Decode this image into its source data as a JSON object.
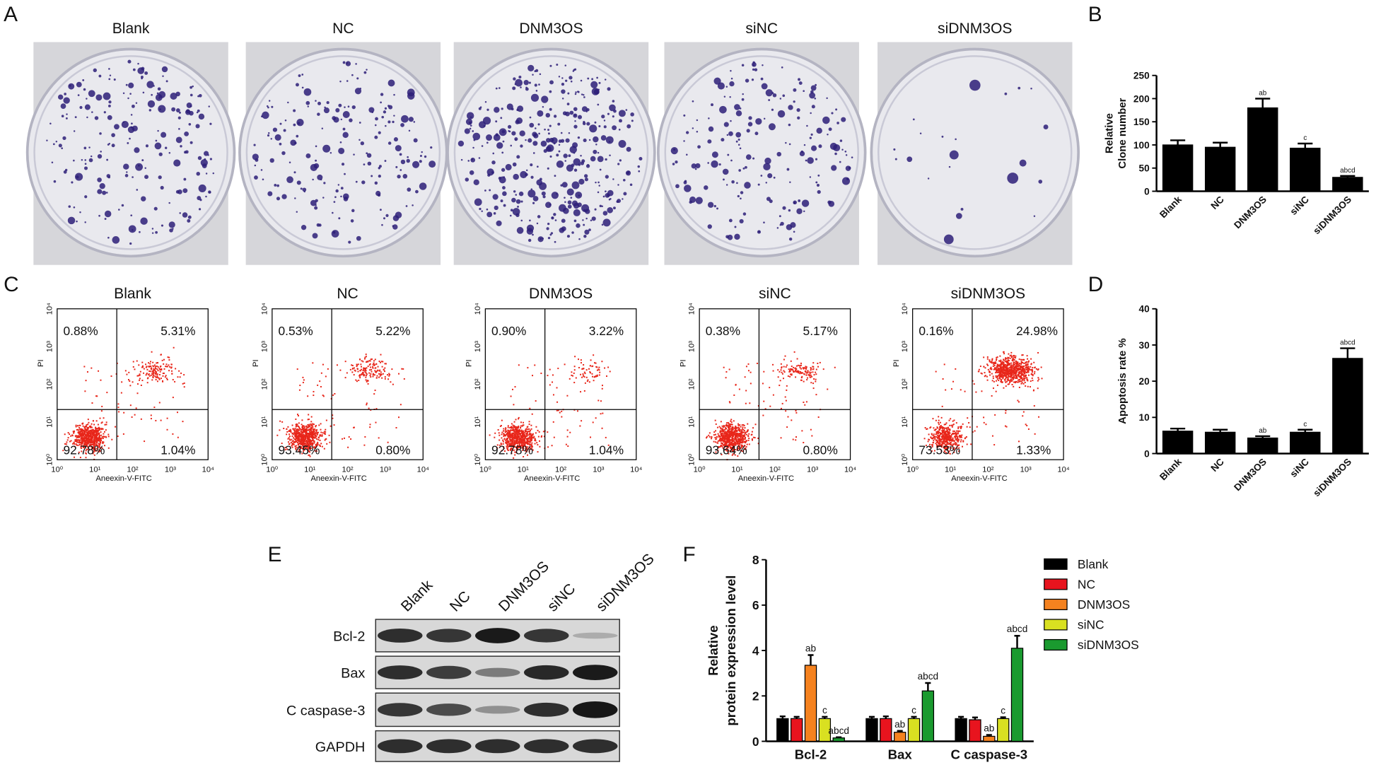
{
  "panel_labels": [
    "A",
    "B",
    "C",
    "D",
    "E",
    "F"
  ],
  "colony_assay": {
    "groups": [
      "Blank",
      "NC",
      "DNM3OS",
      "siNC",
      "siDNM3OS"
    ]
  },
  "flow_cytometry": {
    "x_label": "Aneexin-V-FITC",
    "y_label": "PI",
    "ticks": [
      "10⁰",
      "10¹",
      "10²",
      "10³",
      "10⁴"
    ],
    "plots": [
      {
        "title": "Blank",
        "quadrants": [
          "0.88%",
          "5.31%",
          "92.78%",
          "1.04%"
        ]
      },
      {
        "title": "NC",
        "quadrants": [
          "0.53%",
          "5.22%",
          "93.45%",
          "0.80%"
        ]
      },
      {
        "title": "DNM3OS",
        "quadrants": [
          "0.90%",
          "3.22%",
          "92.78%",
          "1.04%"
        ]
      },
      {
        "title": "siNC",
        "quadrants": [
          "0.38%",
          "5.17%",
          "93.64%",
          "0.80%"
        ]
      },
      {
        "title": "siDNM3OS",
        "quadrants": [
          "0.16%",
          "24.98%",
          "73.53%",
          "1.33%"
        ]
      }
    ]
  },
  "western_blot": {
    "lanes": [
      "Blank",
      "NC",
      "DNM3OS",
      "siNC",
      "siDNM3OS"
    ],
    "proteins": [
      "Bcl-2",
      "Bax",
      "C caspase-3",
      "GAPDH"
    ]
  },
  "chart_data": [
    {
      "type": "bar",
      "ylabel": [
        "Relative",
        "Clone number"
      ],
      "categories": [
        "Blank",
        "NC",
        "DNM3OS",
        "siNC",
        "siDNM3OS"
      ],
      "values": [
        100,
        95,
        180,
        93,
        30
      ],
      "errors": [
        10,
        10,
        20,
        10,
        3
      ],
      "annotations": [
        null,
        null,
        "ab",
        "c",
        "abcd"
      ],
      "color": "#000000",
      "ylim": [
        0,
        250
      ],
      "yticks": [
        0,
        50,
        100,
        150,
        200,
        250
      ]
    },
    {
      "type": "bar",
      "ylabel": [
        "Apoptosis rate %"
      ],
      "categories": [
        "Blank",
        "NC",
        "DNM3OS",
        "siNC",
        "siDNM3OS"
      ],
      "values": [
        6.2,
        5.9,
        4.3,
        5.9,
        26.3
      ],
      "errors": [
        0.7,
        0.7,
        0.5,
        0.7,
        2.8
      ],
      "annotations": [
        null,
        null,
        "ab",
        "c",
        "abcd"
      ],
      "color": "#000000",
      "ylim": [
        0,
        40
      ],
      "yticks": [
        0,
        10,
        20,
        30,
        40
      ]
    },
    {
      "type": "bar",
      "ylabel": [
        "Relative",
        "protein expression level"
      ],
      "categories": [
        "Bcl-2",
        "Bax",
        "C caspase-3"
      ],
      "series": [
        {
          "name": "Blank",
          "color": "#000000",
          "values": [
            1,
            1,
            1
          ],
          "errors": [
            0.1,
            0.08,
            0.08
          ],
          "annotations": [
            null,
            null,
            null
          ]
        },
        {
          "name": "NC",
          "color": "#e8141e",
          "values": [
            1,
            1,
            0.95
          ],
          "errors": [
            0.08,
            0.1,
            0.1
          ],
          "annotations": [
            null,
            null,
            null
          ]
        },
        {
          "name": "DNM3OS",
          "color": "#f5821f",
          "values": [
            3.35,
            0.4,
            0.22
          ],
          "errors": [
            0.45,
            0.06,
            0.06
          ],
          "annotations": [
            "ab",
            "ab",
            "ab"
          ]
        },
        {
          "name": "siNC",
          "color": "#d9e021",
          "values": [
            1,
            1,
            1
          ],
          "errors": [
            0.08,
            0.08,
            0.06
          ],
          "annotations": [
            "c",
            "c",
            "c"
          ]
        },
        {
          "name": "siDNM3OS",
          "color": "#1a9a2f",
          "values": [
            0.15,
            2.22,
            4.1
          ],
          "errors": [
            0.03,
            0.35,
            0.55
          ],
          "annotations": [
            "abcd",
            "abcd",
            "abcd"
          ]
        }
      ],
      "ylim": [
        0,
        8
      ],
      "yticks": [
        0,
        2,
        4,
        6,
        8
      ],
      "legend": "right"
    }
  ]
}
